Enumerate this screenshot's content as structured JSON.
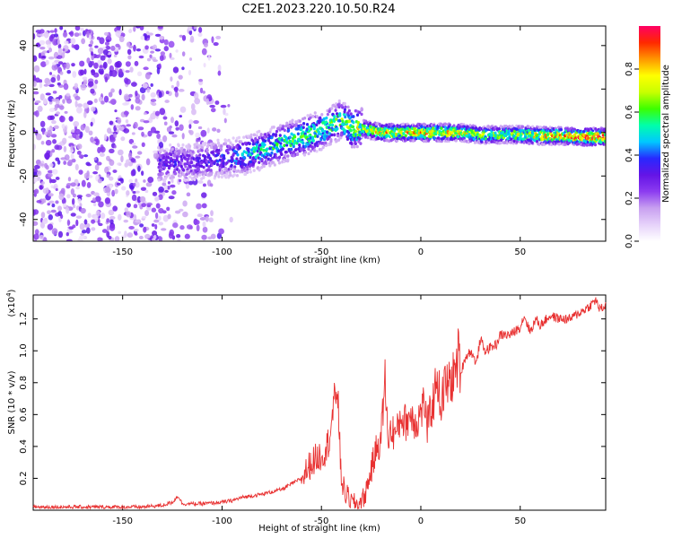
{
  "title": "C2E1.2023.220.10.50.R24",
  "chart_data": [
    {
      "type": "heatmap",
      "xlabel": "Height of straight line (km)",
      "ylabel": "Frequency (Hz)",
      "xlim": [
        -195,
        93
      ],
      "ylim": [
        -50,
        49
      ],
      "xticks": [
        -150,
        -100,
        -50,
        0,
        50
      ],
      "yticks": [
        -40,
        -20,
        0,
        20,
        40
      ],
      "colorbar": {
        "label": "Normalized spectral amplitude",
        "range": [
          0,
          1
        ],
        "ticks": [
          0.0,
          0.2,
          0.4,
          0.6,
          0.8
        ],
        "colormap": [
          "#ffffff",
          "#e6d2fa",
          "#c8a0f0",
          "#8c3cf0",
          "#6414e6",
          "#2828ff",
          "#00c8ff",
          "#00ffaa",
          "#3cff00",
          "#c8ff00",
          "#ffff00",
          "#ff9600",
          "#ff2800",
          "#ff0064"
        ]
      },
      "ridge": {
        "x": [
          -130,
          -120,
          -110,
          -100,
          -90,
          -80,
          -70,
          -60,
          -50,
          -40,
          -35,
          -30,
          -25,
          -20,
          -10,
          0,
          10,
          20,
          30,
          40,
          50,
          60,
          70,
          80,
          93
        ],
        "y": [
          -14,
          -14,
          -13,
          -12,
          -11,
          -8,
          -5,
          -2,
          1,
          6,
          2,
          2,
          1,
          0,
          0,
          0,
          0,
          0,
          -1,
          -1,
          -1,
          -1.5,
          -1.5,
          -2,
          -2
        ],
        "peak_amplitude": [
          0.35,
          0.35,
          0.35,
          0.4,
          0.5,
          0.55,
          0.6,
          0.65,
          0.65,
          0.65,
          0.75,
          0.75,
          0.8,
          0.85,
          0.85,
          0.9,
          0.85,
          0.8,
          0.75,
          0.75,
          0.8,
          0.85,
          0.9,
          0.95,
          1.0
        ]
      }
    },
    {
      "type": "line",
      "xlabel": "Height of straight line (km)",
      "ylabel": "SNR (10 * v/v)",
      "multiplier_label": "(x10",
      "multiplier_exp": "4",
      "multiplier_close": ")",
      "xlim": [
        -195,
        93
      ],
      "ylim": [
        0,
        1.35
      ],
      "xticks": [
        -150,
        -100,
        -50,
        0,
        50
      ],
      "yticks": [
        0.2,
        0.4,
        0.6,
        0.8,
        1.0,
        1.2
      ],
      "color": "#e83030",
      "series": [
        {
          "x": [
            -195,
            -180,
            -160,
            -140,
            -130,
            -125,
            -122,
            -120,
            -110,
            -100,
            -95,
            -90,
            -80,
            -70,
            -60,
            -55,
            -50,
            -47,
            -45,
            -43,
            -42,
            -41,
            -40,
            -39,
            -38,
            -36,
            -35,
            -33,
            -32,
            -31,
            -30,
            -28,
            -25,
            -22,
            -20,
            -19,
            -18,
            -17,
            -16,
            -15,
            -12,
            -10,
            -8,
            -5,
            -2,
            0,
            2,
            3,
            5,
            7,
            8,
            10,
            12,
            15,
            18,
            19,
            20,
            22,
            25,
            28,
            30,
            32,
            35,
            38,
            40,
            45,
            50,
            52,
            55,
            58,
            60,
            65,
            70,
            75,
            80,
            85,
            88,
            90,
            93
          ],
          "y": [
            0.02,
            0.02,
            0.02,
            0.02,
            0.03,
            0.05,
            0.09,
            0.04,
            0.04,
            0.05,
            0.06,
            0.08,
            0.1,
            0.13,
            0.2,
            0.3,
            0.35,
            0.4,
            0.55,
            0.7,
            0.82,
            0.45,
            0.2,
            0.15,
            0.1,
            0.08,
            0.05,
            0.04,
            0.04,
            0.05,
            0.05,
            0.1,
            0.25,
            0.4,
            0.45,
            0.65,
            0.82,
            0.55,
            0.45,
            0.5,
            0.48,
            0.6,
            0.55,
            0.6,
            0.55,
            0.62,
            0.68,
            0.5,
            0.62,
            0.72,
            0.88,
            0.65,
            0.78,
            0.8,
            0.9,
            1.0,
            0.85,
            0.95,
            1.0,
            0.92,
            1.08,
            1.0,
            1.02,
            1.04,
            1.1,
            1.1,
            1.15,
            1.22,
            1.12,
            1.2,
            1.16,
            1.22,
            1.2,
            1.2,
            1.24,
            1.28,
            1.32,
            1.26,
            1.28
          ]
        }
      ]
    }
  ]
}
